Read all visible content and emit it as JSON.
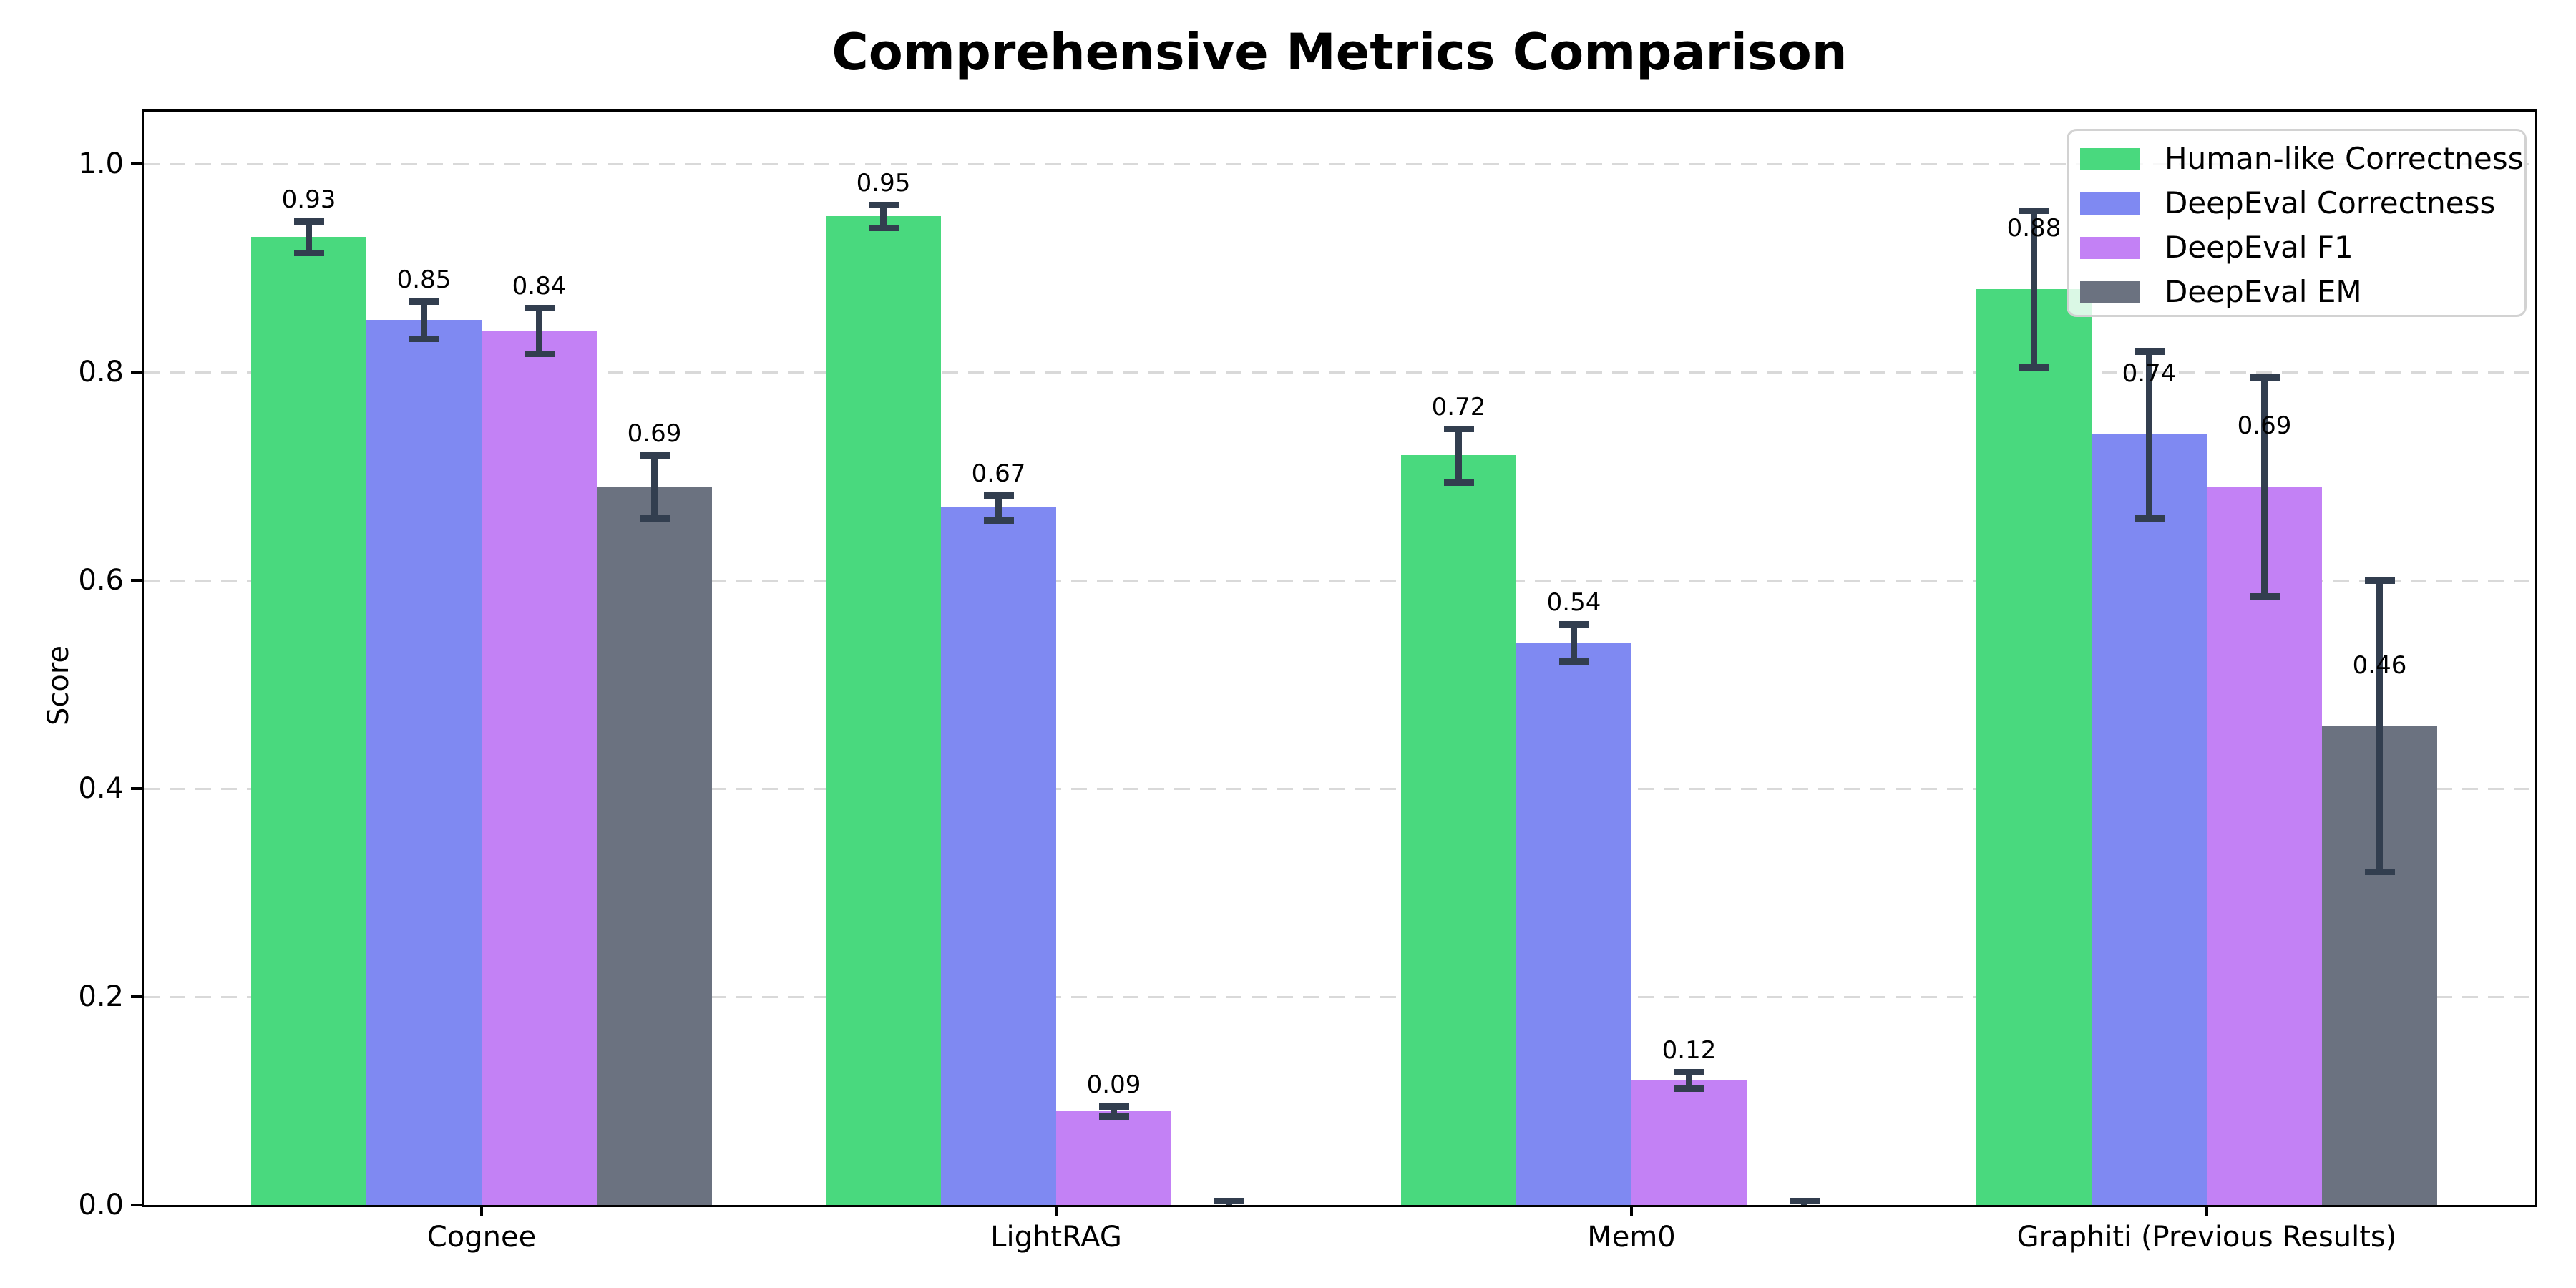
{
  "title": "Comprehensive Metrics Comparison",
  "chart_data": {
    "type": "bar",
    "title": "Comprehensive Metrics Comparison",
    "xlabel": "",
    "ylabel": "Score",
    "ylim": [
      0.0,
      1.05
    ],
    "grid": "horizontal dashed",
    "legend_position": "upper right",
    "ytick_labels": [
      "0.0",
      "0.2",
      "0.4",
      "0.6",
      "0.8",
      "1.0"
    ],
    "yticks": [
      0.0,
      0.2,
      0.4,
      0.6,
      0.8,
      1.0
    ],
    "categories": [
      "Cognee",
      "LightRAG",
      "Mem0",
      "Graphiti (Previous Results)"
    ],
    "series": [
      {
        "name": "Human-like Correctness",
        "color": "#49d97e",
        "values": [
          0.93,
          0.95,
          0.72,
          0.88
        ],
        "errors": [
          0.015,
          0.011,
          0.026,
          0.075
        ],
        "value_labels": [
          "0.93",
          "0.95",
          "0.72",
          "0.88"
        ]
      },
      {
        "name": "DeepEval Correctness",
        "color": "#7f89f2",
        "values": [
          0.85,
          0.67,
          0.54,
          0.74
        ],
        "errors": [
          0.018,
          0.012,
          0.018,
          0.08
        ],
        "value_labels": [
          "0.85",
          "0.67",
          "0.54",
          "0.74"
        ]
      },
      {
        "name": "DeepEval F1",
        "color": "#c381f5",
        "values": [
          0.84,
          0.09,
          0.12,
          0.69
        ],
        "errors": [
          0.022,
          0.005,
          0.008,
          0.105
        ],
        "value_labels": [
          "0.84",
          "0.09",
          "0.12",
          "0.69"
        ]
      },
      {
        "name": "DeepEval EM",
        "color": "#6b7280",
        "values": [
          0.69,
          0.0,
          0.0,
          0.46
        ],
        "errors": [
          0.03,
          0.004,
          0.004,
          0.14
        ],
        "value_labels": [
          "0.69",
          "",
          "",
          "0.46"
        ]
      }
    ],
    "error_bar_color": "#323e4f",
    "grid_color": "#d9d9d9"
  }
}
